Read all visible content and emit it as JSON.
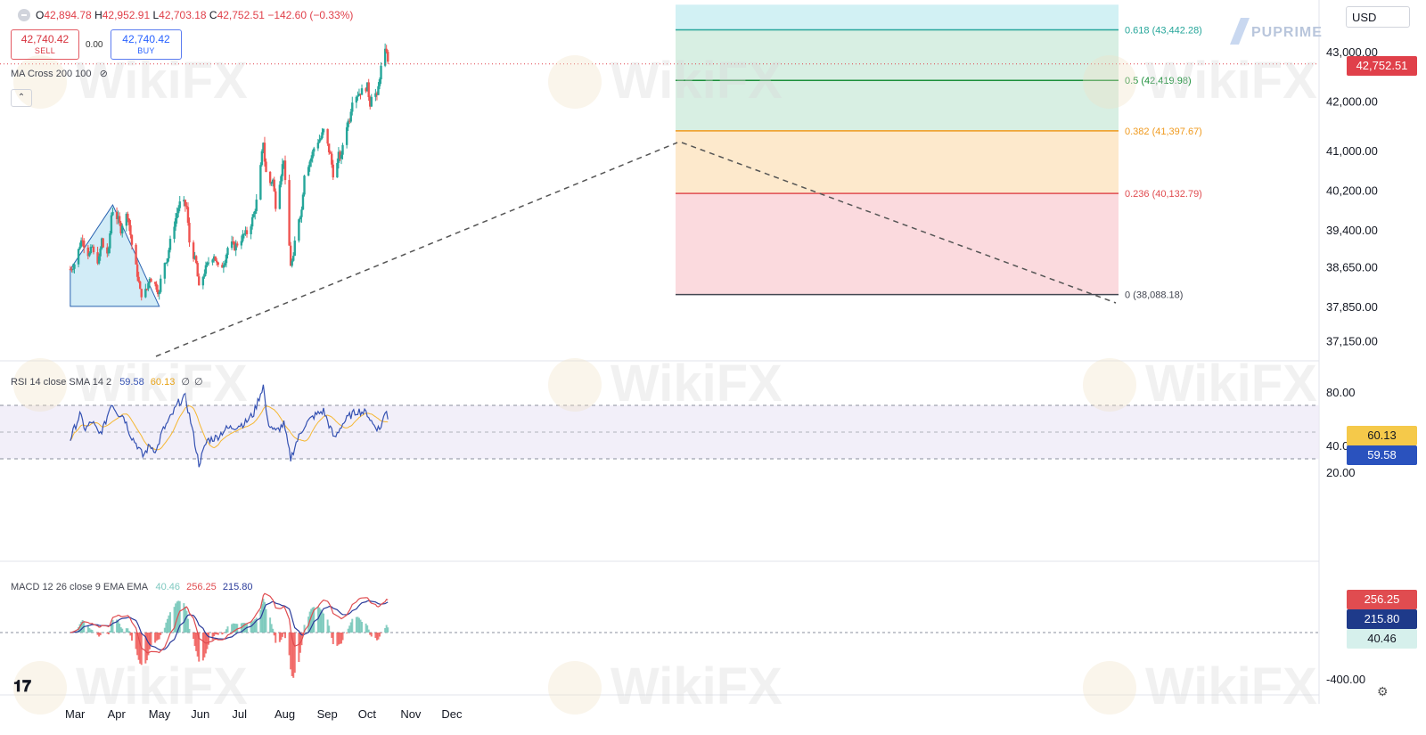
{
  "header": {
    "open_label": "O",
    "open": "42,894.78",
    "high_label": "H",
    "high": "42,952.91",
    "low_label": "L",
    "low": "42,703.18",
    "close_label": "C",
    "close": "42,752.51",
    "change": "−142.60 (−0.33%)"
  },
  "trade": {
    "sell_price": "42,740.42",
    "sell_label": "SELL",
    "spread": "0.00",
    "buy_price": "42,740.42",
    "buy_label": "BUY"
  },
  "indicators": {
    "ma_label": "MA Cross 200 100",
    "rsi_label": "RSI 14 close SMA 14 2",
    "rsi_value": "59.58",
    "rsi_sma_value": "60.13",
    "rsi_extra1": "∅",
    "rsi_extra2": "∅",
    "macd_label": "MACD 12 26 close 9 EMA EMA",
    "macd_hist_value": "40.46",
    "macd_value": "256.25",
    "macd_signal_value": "215.80"
  },
  "currency": "USD",
  "brand": "PUPRIME",
  "watermark": "WikiFX",
  "badges": {
    "last_price": "42,752.51",
    "rsi_sma": "60.13",
    "rsi": "59.58",
    "macd": "256.25",
    "signal": "215.80",
    "hist": "40.46"
  },
  "colors": {
    "up": "#26a69a",
    "down": "#ef5350",
    "rsi_line": "#3451b2",
    "rsi_sma": "#f5b732",
    "macd_line": "#2a3b9a",
    "signal_line": "#e04c50",
    "fib_0": "#fbd6da",
    "fib_236": "#fde7c6",
    "fib_382": "#d4ede0",
    "fib_5": "#d4ede0",
    "fib_618": "#cdeff3"
  },
  "chart_data": [
    {
      "type": "candlestick",
      "title": "",
      "price_axis_ticks": [
        "43,000.00",
        "42,000.00",
        "41,000.00",
        "40,200.00",
        "39,400.00",
        "38,650.00",
        "37,850.00",
        "37,150.00"
      ],
      "x_axis_ticks": [
        "Mar",
        "Apr",
        "May",
        "Jun",
        "Jul",
        "Aug",
        "Sep",
        "Oct",
        "Nov",
        "Dec"
      ],
      "fibonacci": [
        {
          "level": "0.618",
          "price": 43442.28,
          "label": "0.618 (43,442.28)"
        },
        {
          "level": "0.5",
          "price": 42419.98,
          "label": "0.5 (42,419.98)"
        },
        {
          "level": "0.382",
          "price": 41397.67,
          "label": "0.382 (41,397.67)"
        },
        {
          "level": "0.236",
          "price": 40132.79,
          "label": "0.236 (40,132.79)"
        },
        {
          "level": "0",
          "price": 38088.18,
          "label": "0 (38,088.18)"
        }
      ],
      "close_path": [
        [
          "Feb 26",
          38600
        ],
        [
          "Mar 1",
          38750
        ],
        [
          "Mar 4",
          39100
        ],
        [
          "Mar 6",
          39250
        ],
        [
          "Mar 8",
          38950
        ],
        [
          "Mar 11",
          38900
        ],
        [
          "Mar 13",
          39050
        ],
        [
          "Mar 15",
          38750
        ],
        [
          "Mar 18",
          38800
        ],
        [
          "Mar 20",
          39200
        ],
        [
          "Mar 22",
          38900
        ],
        [
          "Mar 25",
          38950
        ],
        [
          "Mar 27",
          39700
        ],
        [
          "Mar 28",
          39800
        ],
        [
          "Apr 1",
          39600
        ],
        [
          "Apr 3",
          39400
        ],
        [
          "Apr 5",
          39650
        ],
        [
          "Apr 8",
          39700
        ],
        [
          "Apr 10",
          39300
        ],
        [
          "Apr 12",
          38900
        ],
        [
          "Apr 15",
          38500
        ],
        [
          "Apr 17",
          38150
        ],
        [
          "Apr 19",
          38050
        ],
        [
          "Apr 22",
          38200
        ],
        [
          "Apr 24",
          38450
        ],
        [
          "Apr 26",
          38350
        ],
        [
          "Apr 29",
          38250
        ],
        [
          "May 1",
          38100
        ],
        [
          "May 3",
          38650
        ],
        [
          "May 7",
          38850
        ],
        [
          "May 10",
          39300
        ],
        [
          "May 15",
          39850
        ],
        [
          "May 17",
          40000
        ],
        [
          "May 21",
          39850
        ],
        [
          "May 23",
          39150
        ],
        [
          "May 28",
          38700
        ],
        [
          "May 30",
          38200
        ],
        [
          "Jun 3",
          38550
        ],
        [
          "Jun 6",
          38750
        ],
        [
          "Jun 10",
          38900
        ],
        [
          "Jun 12",
          38700
        ],
        [
          "Jun 14",
          38550
        ],
        [
          "Jun 18",
          38800
        ],
        [
          "Jun 21",
          39150
        ],
        [
          "Jun 25",
          39050
        ],
        [
          "Jun 28",
          39150
        ],
        [
          "Jul 2",
          39300
        ],
        [
          "Jul 5",
          39350
        ],
        [
          "Jul 9",
          39700
        ],
        [
          "Jul 12",
          40100
        ],
        [
          "Jul 16",
          41200
        ],
        [
          "Jul 17",
          40800
        ],
        [
          "Jul 19",
          40300
        ],
        [
          "Jul 23",
          40400
        ],
        [
          "Jul 25",
          39900
        ],
        [
          "Jul 29",
          40550
        ],
        [
          "Jul 31",
          40850
        ],
        [
          "Aug 2",
          39800
        ],
        [
          "Aug 5",
          38700
        ],
        [
          "Aug 7",
          38800
        ],
        [
          "Aug 9",
          39500
        ],
        [
          "Aug 13",
          39800
        ],
        [
          "Aug 15",
          40550
        ],
        [
          "Aug 20",
          40850
        ],
        [
          "Aug 23",
          41150
        ],
        [
          "Aug 27",
          41250
        ],
        [
          "Aug 29",
          41400
        ],
        [
          "Sep 3",
          40900
        ],
        [
          "Sep 6",
          40350
        ],
        [
          "Sep 9",
          40900
        ],
        [
          "Sep 11",
          40850
        ],
        [
          "Sep 13",
          41400
        ],
        [
          "Sep 17",
          41650
        ],
        [
          "Sep 19",
          42050
        ],
        [
          "Sep 23",
          42150
        ],
        [
          "Sep 26",
          42200
        ],
        [
          "Sep 30",
          42300
        ],
        [
          "Oct 2",
          41950
        ],
        [
          "Oct 4",
          42350
        ],
        [
          "Oct 7",
          42050
        ],
        [
          "Oct 9",
          42500
        ],
        [
          "Oct 11",
          42850
        ],
        [
          "Oct 14",
          43050
        ],
        [
          "Oct 15",
          42750
        ]
      ]
    },
    {
      "type": "line",
      "title": "",
      "y_axis_ticks": [
        "80.00",
        "40.00",
        "20.00"
      ],
      "series": [
        {
          "name": "RSI",
          "last": 59.58
        },
        {
          "name": "SMA",
          "last": 60.13
        }
      ],
      "rsi_path": [
        [
          "Feb 26",
          45
        ],
        [
          "Mar 4",
          63
        ],
        [
          "Mar 8",
          52
        ],
        [
          "Mar 13",
          58
        ],
        [
          "Mar 18",
          48
        ],
        [
          "Mar 22",
          55
        ],
        [
          "Mar 27",
          72
        ],
        [
          "Apr 1",
          64
        ],
        [
          "Apr 5",
          62
        ],
        [
          "Apr 10",
          48
        ],
        [
          "Apr 15",
          40
        ],
        [
          "Apr 19",
          32
        ],
        [
          "Apr 24",
          40
        ],
        [
          "Apr 29",
          36
        ],
        [
          "May 3",
          50
        ],
        [
          "May 10",
          62
        ],
        [
          "May 15",
          72
        ],
        [
          "May 20",
          76
        ],
        [
          "May 24",
          58
        ],
        [
          "May 30",
          26
        ],
        [
          "Jun 5",
          44
        ],
        [
          "Jun 12",
          46
        ],
        [
          "Jun 18",
          52
        ],
        [
          "Jun 25",
          54
        ],
        [
          "Jul 3",
          57
        ],
        [
          "Jul 9",
          64
        ],
        [
          "Jul 16",
          85
        ],
        [
          "Jul 19",
          58
        ],
        [
          "Jul 25",
          50
        ],
        [
          "Jul 31",
          56
        ],
        [
          "Aug 5",
          30
        ],
        [
          "Aug 9",
          42
        ],
        [
          "Aug 15",
          55
        ],
        [
          "Aug 22",
          62
        ],
        [
          "Aug 29",
          66
        ],
        [
          "Sep 6",
          45
        ],
        [
          "Sep 11",
          55
        ],
        [
          "Sep 17",
          62
        ],
        [
          "Sep 23",
          66
        ],
        [
          "Sep 30",
          64
        ],
        [
          "Oct 4",
          56
        ],
        [
          "Oct 9",
          52
        ],
        [
          "Oct 14",
          67
        ],
        [
          "Oct 15",
          59.58
        ]
      ]
    },
    {
      "type": "bar",
      "title": "",
      "y_axis_ticks": [
        "-400.00"
      ],
      "series": [
        {
          "name": "MACD",
          "last": 256.25
        },
        {
          "name": "Signal",
          "last": 215.8
        },
        {
          "name": "Histogram",
          "last": 40.46
        }
      ]
    }
  ]
}
